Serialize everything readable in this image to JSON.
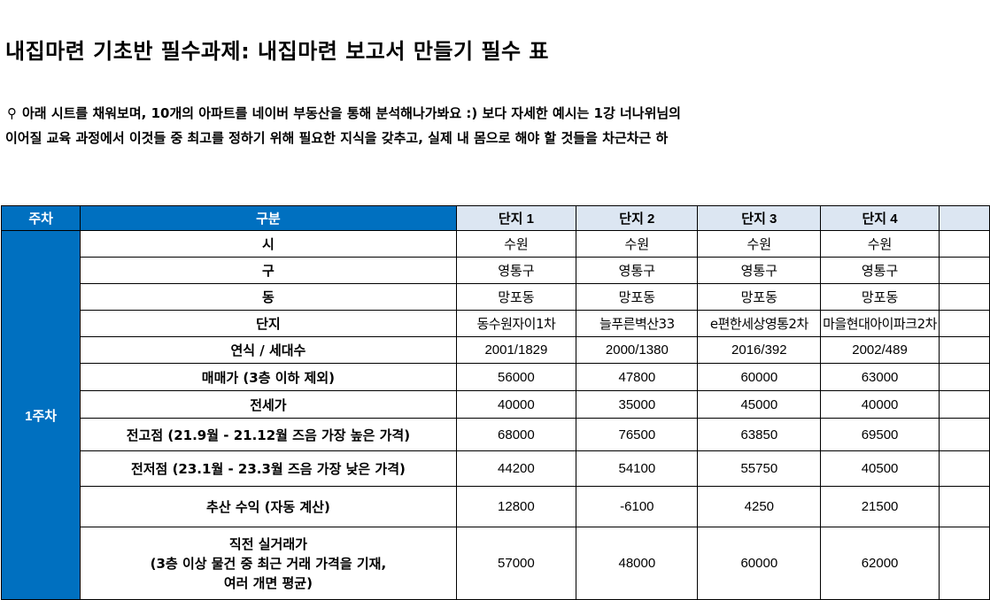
{
  "title": "내집마련 기초반 필수과제:  내집마련 보고서 만들기 필수 표",
  "description": [
    "아래 시트를 채워보며, 10개의 아파트를 네이버 부동산을 통해 분석해나가봐요 :) 보다 자세한 예시는 1강 너나위님의",
    "이어질 교육 과정에서 이것들 중 최고를 정하기 위해 필요한 지식을 갖추고, 실제 내 몸으로 해야 할 것들을 차근차근 하"
  ],
  "icons": {
    "pin": "map-pin-icon"
  },
  "colors": {
    "header_blue": "#0070c0",
    "header_lavender": "#dce6f2"
  },
  "table": {
    "headers": {
      "week": "주차",
      "category": "구분",
      "complexes": [
        "단지 1",
        "단지 2",
        "단지 3",
        "단지 4"
      ]
    },
    "week_label": "1주차",
    "rows": [
      {
        "label": "시",
        "values": [
          "수원",
          "수원",
          "수원",
          "수원"
        ]
      },
      {
        "label": "구",
        "values": [
          "영통구",
          "영통구",
          "영통구",
          "영통구"
        ]
      },
      {
        "label": "동",
        "values": [
          "망포동",
          "망포동",
          "망포동",
          "망포동"
        ]
      },
      {
        "label": "단지",
        "values": [
          "동수원자이1차",
          "늘푸른벽산33",
          "e편한세상영통2차",
          "마을현대아이파크2차"
        ]
      },
      {
        "label": "연식 / 세대수",
        "values": [
          "2001/1829",
          "2000/1380",
          "2016/392",
          "2002/489"
        ]
      },
      {
        "label": "매매가 (3층 이하 제외)",
        "values": [
          "56000",
          "47800",
          "60000",
          "63000"
        ]
      },
      {
        "label": "전세가",
        "values": [
          "40000",
          "35000",
          "45000",
          "40000"
        ]
      },
      {
        "label": "전고점 (21.9월 - 21.12월 즈음 가장 높은 가격)",
        "values": [
          "68000",
          "76500",
          "63850",
          "69500"
        ]
      },
      {
        "label": "전저점 (23.1월 - 23.3월 즈음 가장 낮은 가격)",
        "values": [
          "44200",
          "54100",
          "55750",
          "40500"
        ]
      },
      {
        "label": "추산 수익 (자동 계산)",
        "values": [
          "12800",
          "-6100",
          "4250",
          "21500"
        ]
      },
      {
        "label_lines": [
          "직전 실거래가",
          "(3층 이상 물건 중 최근 거래 가격을 기재,",
          "여러 개면 평균)"
        ],
        "values": [
          "57000",
          "48000",
          "60000",
          "62000"
        ]
      }
    ]
  }
}
